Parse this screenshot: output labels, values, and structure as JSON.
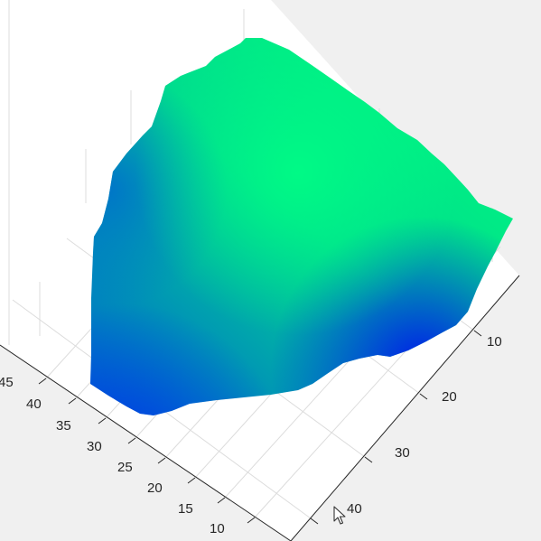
{
  "chart_data": {
    "type": "surface",
    "title": "",
    "xlabel": "",
    "ylabel": "",
    "zlabel": "",
    "colormap": "winter",
    "colors": {
      "figure_background": "#f0f0f0",
      "axes_background": "#ffffff",
      "grid": "#dcdcdc",
      "axis_line": "#262626",
      "colormap_low": "#0000ff",
      "colormap_high": "#00ff80"
    },
    "grid": true,
    "view": "3-D rotated view, surface seen mostly from above",
    "x_axis": {
      "ticks": [
        10,
        20,
        30,
        40
      ],
      "tick_labels": [
        "10",
        "20",
        "30",
        "40"
      ]
    },
    "y_axis": {
      "ticks": [
        10,
        15,
        20,
        25,
        30,
        35,
        40,
        45
      ],
      "tick_labels": [
        "10",
        "15",
        "20",
        "25",
        "30",
        "35",
        "40",
        "45"
      ]
    }
  },
  "cursor": {
    "icon": "mouse-pointer-icon"
  }
}
